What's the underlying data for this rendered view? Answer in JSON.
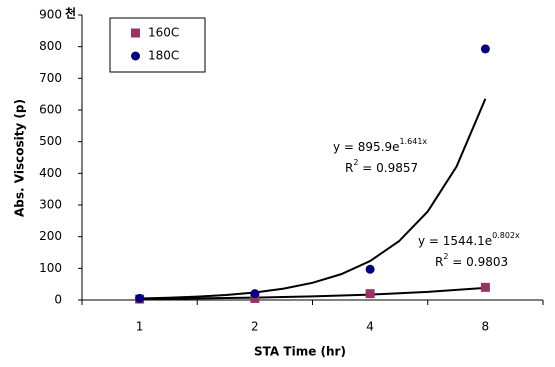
{
  "chart_data": {
    "type": "scatter",
    "x_label": "STA Time (hr)",
    "y_label": "Abs. Viscosity (p)",
    "y_unit": "천",
    "categories": [
      "1",
      "2",
      "4",
      "8"
    ],
    "ylim": [
      0,
      900
    ],
    "yticks": [
      0,
      100,
      200,
      300,
      400,
      500,
      600,
      700,
      800,
      900
    ],
    "legend": "top-left",
    "series": [
      {
        "name": "160C",
        "color": "#993366",
        "marker": "square",
        "values": [
          3,
          5,
          20,
          40
        ]
      },
      {
        "name": "180C",
        "color": "#000080",
        "marker": "circle",
        "values": [
          5,
          20,
          97,
          793
        ]
      }
    ],
    "trendlines": [
      {
        "equation": "y = 895.9e",
        "exponent": "1.641x",
        "r2_symbol": "R",
        "r2_power": "2",
        "r2_text": " = 0.9857",
        "x": [
          1,
          1.25,
          1.5,
          1.75,
          2,
          2.25,
          2.5,
          2.75,
          3,
          3.25,
          3.5,
          3.75,
          4
        ],
        "values": [
          4.62,
          6.97,
          10.5,
          15.83,
          23.86,
          35.95,
          54.2,
          81.7,
          123.1,
          185.5,
          279.6,
          421.5,
          635.3
        ]
      },
      {
        "equation": "y = 1544.1e",
        "exponent": "0.802x",
        "r2_symbol": "R",
        "r2_power": "2",
        "r2_text": " = 0.9803",
        "x": [
          1,
          1.5,
          2,
          2.5,
          3,
          3.5,
          4
        ],
        "values": [
          3.44,
          5.14,
          7.68,
          11.47,
          17.12,
          25.57,
          38.19
        ]
      }
    ]
  }
}
